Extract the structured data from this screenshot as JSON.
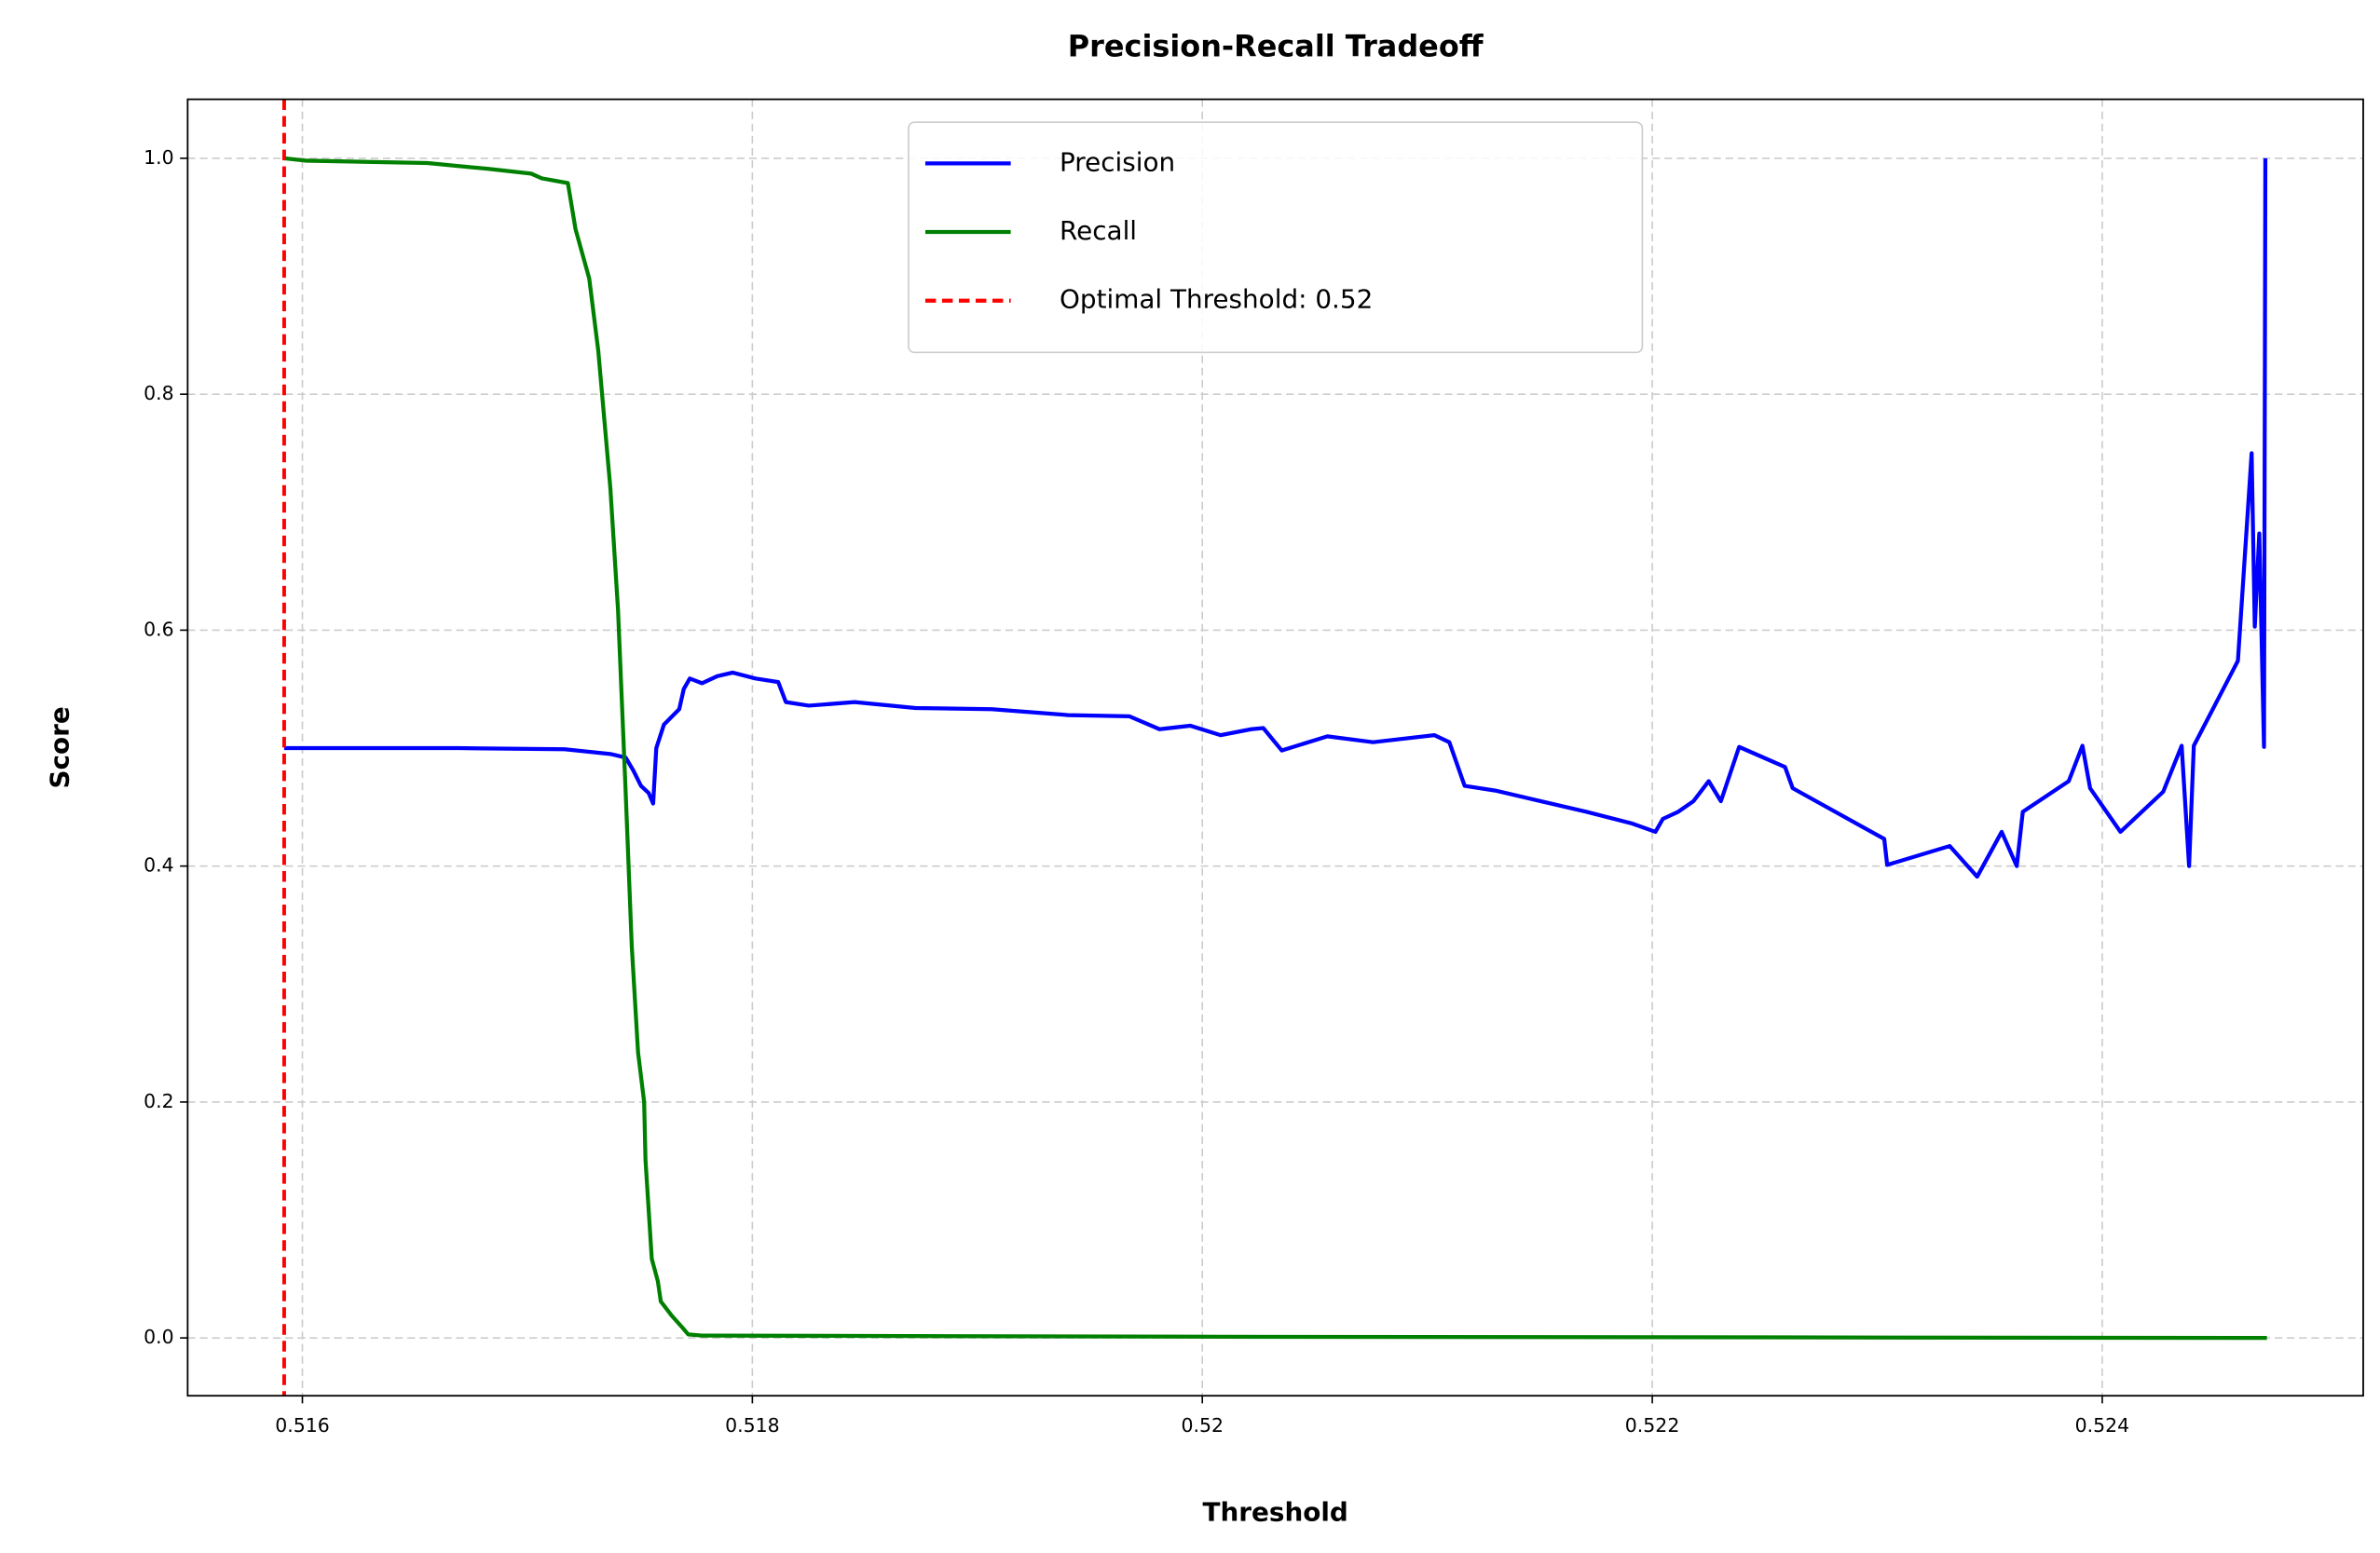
{
  "chart_data": {
    "type": "line",
    "title": "Precision-Recall Tradeoff",
    "x_label": "Threshold",
    "y_label": "Score",
    "xlim": [
      0.51549,
      0.52516
    ],
    "ylim": [
      -0.049,
      1.05
    ],
    "xticks": [
      0.516,
      0.518,
      0.52,
      0.522,
      0.524
    ],
    "yticks": [
      {
        "value": 0,
        "label": "0.0"
      },
      0.2,
      0.4,
      0.6,
      0.8,
      {
        "value": 1,
        "label": "1.0"
      }
    ],
    "grid": true,
    "legend": "upper center",
    "series": [
      {
        "name": "Precision",
        "color": "#0000ff",
        "x": [
          0.515919,
          0.516692,
          0.517166,
          0.517369,
          0.517437,
          0.517471,
          0.517505,
          0.517539,
          0.517559,
          0.517573,
          0.517607,
          0.517675,
          0.517695,
          0.517722,
          0.517776,
          0.517844,
          0.517912,
          0.518014,
          0.518115,
          0.518149,
          0.518251,
          0.518454,
          0.518725,
          0.519064,
          0.519403,
          0.519675,
          0.51981,
          0.519946,
          0.520081,
          0.520217,
          0.520271,
          0.520353,
          0.520556,
          0.520759,
          0.521031,
          0.521098,
          0.521166,
          0.521302,
          0.521437,
          0.521708,
          0.521912,
          0.522014,
          0.522047,
          0.522115,
          0.522183,
          0.522251,
          0.522305,
          0.522386,
          0.52259,
          0.522624,
          0.523031,
          0.523044,
          0.523322,
          0.523444,
          0.523553,
          0.52362,
          0.523647,
          0.523851,
          0.523912,
          0.523946,
          0.524081,
          0.524271,
          0.524353,
          0.524386,
          0.524407,
          0.524603,
          0.524664,
          0.524678,
          0.524698,
          0.524719,
          0.524725
        ],
        "values": [
          0.5,
          0.5,
          0.499,
          0.495,
          0.492,
          0.481,
          0.468,
          0.462,
          0.453,
          0.5,
          0.52,
          0.533,
          0.55,
          0.559,
          0.555,
          0.561,
          0.564,
          0.559,
          0.556,
          0.539,
          0.536,
          0.539,
          0.534,
          0.533,
          0.528,
          0.527,
          0.516,
          0.519,
          0.511,
          0.516,
          0.517,
          0.498,
          0.51,
          0.505,
          0.511,
          0.505,
          0.468,
          0.464,
          0.458,
          0.446,
          0.436,
          0.429,
          0.44,
          0.446,
          0.455,
          0.472,
          0.455,
          0.501,
          0.484,
          0.466,
          0.423,
          0.401,
          0.417,
          0.391,
          0.429,
          0.4,
          0.446,
          0.472,
          0.502,
          0.466,
          0.429,
          0.463,
          0.502,
          0.4,
          0.502,
          0.574,
          0.75,
          0.603,
          0.682,
          0.501,
          1.0
        ]
      },
      {
        "name": "Recall",
        "color": "#008000",
        "x": [
          0.515919,
          0.516014,
          0.516556,
          0.516827,
          0.517017,
          0.517064,
          0.51718,
          0.517214,
          0.517275,
          0.517315,
          0.517369,
          0.517403,
          0.517437,
          0.517464,
          0.517492,
          0.517519,
          0.517525,
          0.517553,
          0.51758,
          0.517593,
          0.517641,
          0.517688,
          0.517715,
          0.517776,
          0.520081,
          0.524732
        ],
        "values": [
          1.0,
          0.998,
          0.996,
          0.991,
          0.987,
          0.983,
          0.979,
          0.94,
          0.898,
          0.837,
          0.72,
          0.617,
          0.462,
          0.332,
          0.242,
          0.2,
          0.151,
          0.067,
          0.048,
          0.031,
          0.019,
          0.009,
          0.003,
          0.002,
          0.001,
          0
        ]
      }
    ],
    "threshold_line": {
      "name": "Optimal Threshold: 0.52",
      "value": 0.515919,
      "color": "#ff0000"
    }
  }
}
